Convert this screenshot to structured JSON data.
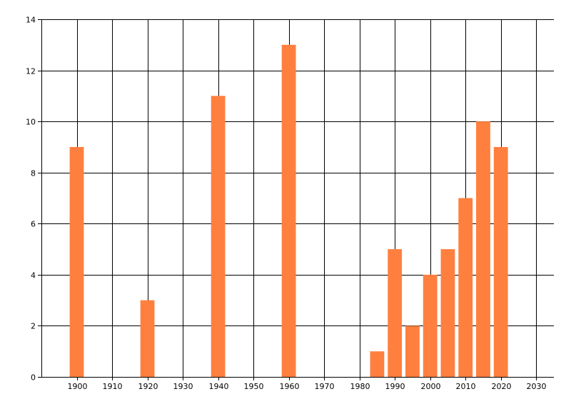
{
  "chart_data": {
    "type": "bar",
    "title": "",
    "xlabel": "",
    "ylabel": "",
    "x": [
      1900,
      1920,
      1940,
      1960,
      1985,
      1990,
      1995,
      2000,
      2005,
      2010,
      2015,
      2020
    ],
    "values": [
      9,
      3,
      11,
      13,
      1,
      5,
      2,
      4,
      5,
      7,
      10,
      9
    ],
    "xlim": [
      1890,
      2035
    ],
    "ylim": [
      0,
      14
    ],
    "xticks": [
      1900,
      1910,
      1920,
      1930,
      1940,
      1950,
      1960,
      1970,
      1980,
      1990,
      2000,
      2010,
      2020,
      2030
    ],
    "yticks": [
      0,
      2,
      4,
      6,
      8,
      10,
      12,
      14
    ],
    "bar_width_years": 4,
    "grid": true,
    "bar_color": "#ff7f3f",
    "grid_color": "#000000"
  }
}
